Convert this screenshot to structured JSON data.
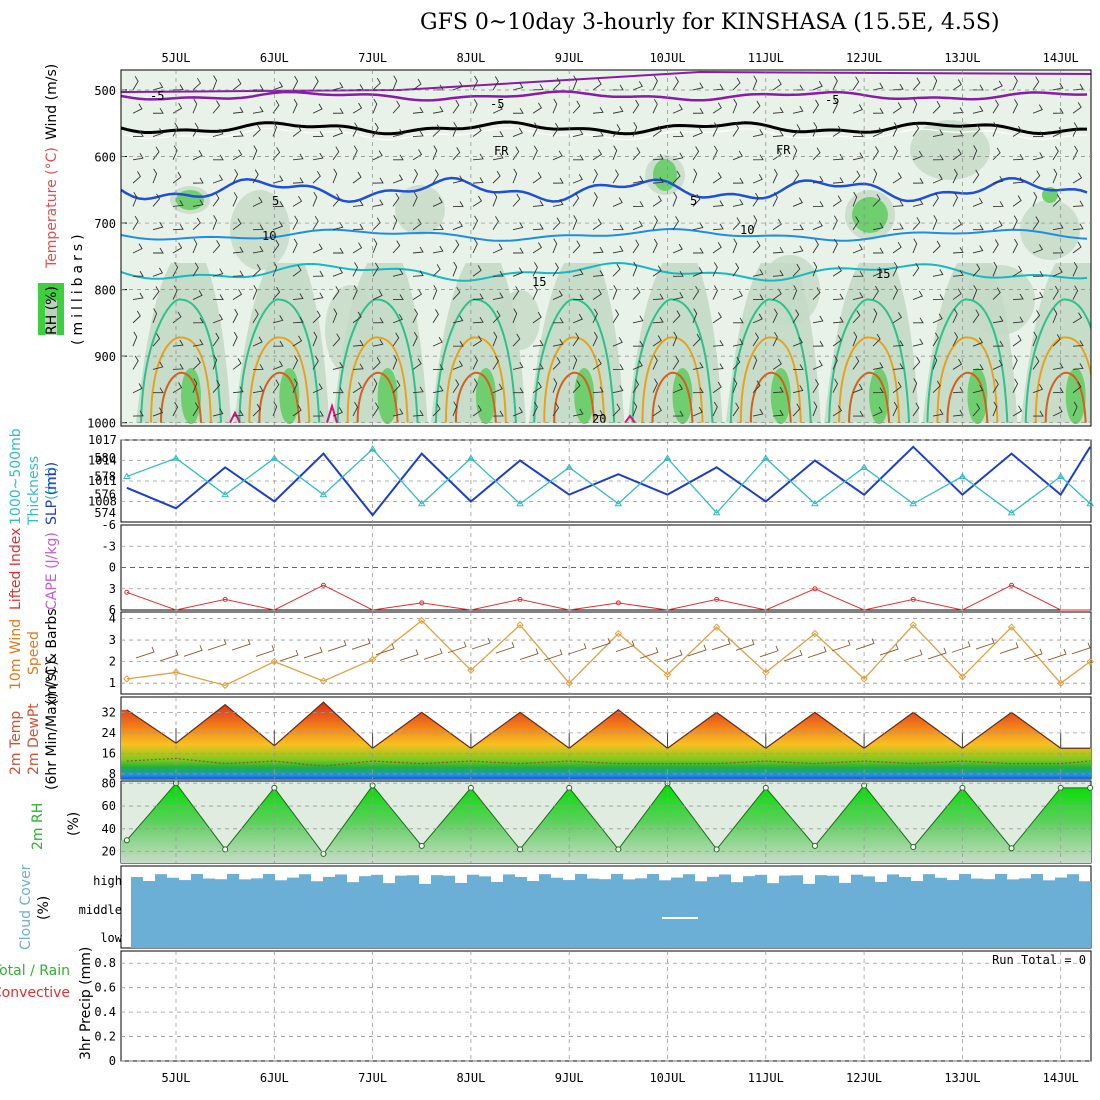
{
  "title": "GFS 0~10day 3-hourly for KINSHASA (15.5E, 4.5S)",
  "dates": [
    "5JUL",
    "6JUL",
    "7JUL",
    "8JUL",
    "9JUL",
    "10JUL",
    "11JUL",
    "12JUL",
    "13JUL",
    "14JUL"
  ],
  "colors": {
    "rh_light": "#e6f1e6",
    "rh_mid": "#c4d9c6",
    "rh_dark": "#6fcf6f",
    "temp_minus5": "#8a1aa8",
    "temp_fr": "#000000",
    "temp_5": "#1e4fd6",
    "temp_10": "#1e8fe0",
    "temp_15": "#17b8c2",
    "temp_20": "#2bc28c",
    "temp_25": "#e8a21a",
    "temp_30": "#d4601a",
    "temp_35": "#d4147a",
    "slp": "#1c3fc8",
    "thickness": "#33bcc4",
    "lifted": "#e03030",
    "cape": "#c060d0",
    "wind_speed": "#e0a040",
    "wind_barb": "#8a5a30",
    "cloud": "#6baed6",
    "cloud_gap": "#f5f0f8",
    "precip_total": "#2db32d",
    "precip_conv": "#e03030"
  },
  "panel1": {
    "ylabel": "(millibars)",
    "label_rh": "RH (%)",
    "label_temp": "Temperature (°C)",
    "label_wind": "Wind (m/s)",
    "yticks": [
      "500",
      "600",
      "700",
      "800",
      "900",
      "1000"
    ],
    "contour_labels": [
      "-5",
      "-5",
      "-5",
      "FR",
      "FR",
      "5",
      "5",
      "10",
      "10",
      "15",
      "15",
      "20"
    ]
  },
  "panel2": {
    "label_thk": "Thickness",
    "label_thk2": "1000~500mb",
    "label_thk3": "(dm)",
    "label_slp": "SLP (mb)",
    "left_ticks": [
      "580",
      "578",
      "576",
      "574"
    ],
    "right_ticks": [
      "1017",
      "1014",
      "1011",
      "1008"
    ]
  },
  "panel3": {
    "label_li": "Lifted Index",
    "label_cape": "CAPE (J/kg)",
    "ticks": [
      "-6",
      "-3",
      "0",
      "3",
      "6"
    ]
  },
  "panel4": {
    "label_a": "10m Wind",
    "label_b": "Speed",
    "label_c": "(m/s) & Barbs",
    "ticks": [
      "4",
      "3",
      "2",
      "1"
    ]
  },
  "panel5": {
    "label_a": "2m Temp",
    "label_b": "2m DewPt",
    "label_c": "(6hr Min/Max) (°C)",
    "ticks": [
      "32",
      "24",
      "16",
      "8"
    ]
  },
  "panel6": {
    "label_a": "2m RH",
    "label_b": "(%)",
    "ticks": [
      "80",
      "60",
      "40",
      "20"
    ]
  },
  "panel7": {
    "label_a": "Cloud Cover",
    "label_b": "(%)",
    "levels": [
      "high",
      "middle",
      "low"
    ]
  },
  "panel8": {
    "label_a": "Total / Rain",
    "label_b": "Convective",
    "label_c": "3hr Precip (mm)",
    "ticks": [
      "0.8",
      "0.6",
      "0.4",
      "0.2",
      "0"
    ],
    "run_total": "Run Total = 0"
  },
  "chart_data": [
    {
      "type": "line",
      "title": "Thickness 1000~500mb (dm) / SLP (mb)",
      "x": [
        "4.5JUL",
        "5JUL",
        "5.5JUL",
        "6JUL",
        "6.5JUL",
        "7JUL",
        "7.5JUL",
        "8JUL",
        "8.5JUL",
        "9JUL",
        "9.5JUL",
        "10JUL",
        "10.5JUL",
        "11JUL",
        "11.5JUL",
        "12JUL",
        "12.5JUL",
        "13JUL",
        "13.5JUL",
        "14JUL",
        "14.3JUL"
      ],
      "series": [
        {
          "name": "SLP (mb)",
          "values": [
            1010,
            1007,
            1013,
            1008,
            1015,
            1006,
            1015,
            1008,
            1014,
            1009,
            1012,
            1009,
            1013,
            1008,
            1014,
            1009,
            1016,
            1009,
            1015,
            1009,
            1016
          ]
        },
        {
          "name": "Thickness 1000~500mb (dm)",
          "values": [
            578,
            580,
            576,
            580,
            576,
            581,
            575,
            580,
            575,
            579,
            575,
            580,
            574,
            580,
            575,
            579,
            575,
            578,
            574,
            578,
            575
          ]
        }
      ],
      "ylim_left": [
        573,
        582
      ],
      "ylim_right": [
        1005,
        1017
      ]
    },
    {
      "type": "line",
      "title": "10m Wind Speed (m/s)",
      "x": [
        "4.5JUL",
        "5JUL",
        "5.5JUL",
        "6JUL",
        "6.5JUL",
        "7JUL",
        "7.5JUL",
        "8JUL",
        "8.5JUL",
        "9JUL",
        "9.5JUL",
        "10JUL",
        "10.5JUL",
        "11JUL",
        "11.5JUL",
        "12JUL",
        "12.5JUL",
        "13JUL",
        "13.5JUL",
        "14JUL",
        "14.3JUL"
      ],
      "series": [
        {
          "name": "10m Wind Speed",
          "values": [
            1.2,
            1.5,
            0.9,
            2.0,
            1.1,
            2.1,
            3.9,
            1.6,
            3.7,
            1.0,
            3.3,
            1.4,
            3.6,
            1.5,
            3.3,
            1.2,
            3.7,
            1.3,
            3.6,
            1.0,
            2.0
          ]
        }
      ],
      "ylim": [
        0.5,
        4.3
      ]
    },
    {
      "type": "area",
      "title": "2m Temp (°C)",
      "x": [
        "4.5JUL",
        "5JUL",
        "5.5JUL",
        "6JUL",
        "6.5JUL",
        "7JUL",
        "7.5JUL",
        "8JUL",
        "8.5JUL",
        "9JUL",
        "9.5JUL",
        "10JUL",
        "10.5JUL",
        "11JUL",
        "11.5JUL",
        "12JUL",
        "12.5JUL",
        "13JUL",
        "13.5JUL",
        "14JUL",
        "14.3JUL"
      ],
      "series": [
        {
          "name": "2m Temp",
          "values": [
            33,
            20,
            35,
            19,
            36,
            18,
            32,
            18,
            32,
            18,
            33,
            18,
            32,
            18,
            32,
            18,
            32,
            18,
            32,
            18,
            18
          ]
        },
        {
          "name": "2m DewPt",
          "values": [
            13,
            14,
            12,
            13,
            11,
            13,
            12,
            13,
            12,
            13,
            12,
            12,
            12,
            13,
            12,
            13,
            12,
            13,
            12,
            12,
            13
          ]
        }
      ],
      "ylim": [
        6,
        38
      ]
    },
    {
      "type": "area",
      "title": "2m RH (%)",
      "x": [
        "4.5JUL",
        "5JUL",
        "5.5JUL",
        "6JUL",
        "6.5JUL",
        "7JUL",
        "7.5JUL",
        "8JUL",
        "8.5JUL",
        "9JUL",
        "9.5JUL",
        "10JUL",
        "10.5JUL",
        "11JUL",
        "11.5JUL",
        "12JUL",
        "12.5JUL",
        "13JUL",
        "13.5JUL",
        "14JUL",
        "14.3JUL"
      ],
      "series": [
        {
          "name": "2m RH",
          "values": [
            30,
            80,
            22,
            76,
            18,
            78,
            25,
            76,
            22,
            76,
            22,
            80,
            22,
            76,
            25,
            78,
            24,
            76,
            23,
            76,
            76
          ]
        }
      ],
      "ylim": [
        10,
        82
      ]
    },
    {
      "type": "line",
      "title": "Lifted Index / CAPE",
      "x": [
        "4.5JUL",
        "5JUL",
        "5.5JUL",
        "6JUL",
        "6.5JUL",
        "7JUL",
        "7.5JUL",
        "8JUL",
        "8.5JUL",
        "9JUL",
        "9.5JUL",
        "10JUL",
        "10.5JUL",
        "11JUL",
        "11.5JUL",
        "12JUL",
        "12.5JUL",
        "13JUL",
        "13.5JUL",
        "14JUL",
        "14.3JUL"
      ],
      "series": [
        {
          "name": "Lifted Index",
          "values": [
            3.5,
            6,
            4.5,
            6,
            2.5,
            6,
            5,
            6,
            4.5,
            6,
            5,
            6,
            4.5,
            6,
            3,
            6,
            4.5,
            6,
            2.5,
            6,
            6
          ]
        }
      ],
      "ylim": [
        -6,
        6
      ]
    },
    {
      "type": "bar",
      "title": "3hr Precip (mm)",
      "categories": [
        "5JUL",
        "6JUL",
        "7JUL",
        "8JUL",
        "9JUL",
        "10JUL",
        "11JUL",
        "12JUL",
        "13JUL",
        "14JUL"
      ],
      "values": [
        0,
        0,
        0,
        0,
        0,
        0,
        0,
        0,
        0,
        0
      ],
      "ylim": [
        0,
        0.9
      ]
    }
  ]
}
